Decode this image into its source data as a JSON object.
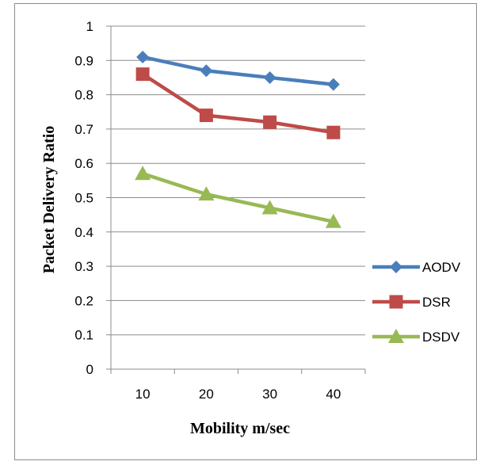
{
  "chart_data": {
    "type": "line",
    "title": "",
    "xlabel": "Mobility m/sec",
    "ylabel": "Packet Delivery Ratio",
    "categories": [
      "10",
      "20",
      "30",
      "40"
    ],
    "ylim": [
      0,
      1
    ],
    "yticks": [
      "0",
      "0.1",
      "0.2",
      "0.3",
      "0.4",
      "0.5",
      "0.6",
      "0.7",
      "0.8",
      "0.9",
      "1"
    ],
    "grid": true,
    "legend_position": "right",
    "series": [
      {
        "name": "AODV",
        "values": [
          0.91,
          0.87,
          0.85,
          0.83
        ],
        "color": "#4a7ebb",
        "marker": "diamond"
      },
      {
        "name": "DSR",
        "values": [
          0.86,
          0.74,
          0.72,
          0.69
        ],
        "color": "#be4b48",
        "marker": "square"
      },
      {
        "name": "DSDV",
        "values": [
          0.57,
          0.51,
          0.47,
          0.43
        ],
        "color": "#98b954",
        "marker": "triangle"
      }
    ]
  }
}
